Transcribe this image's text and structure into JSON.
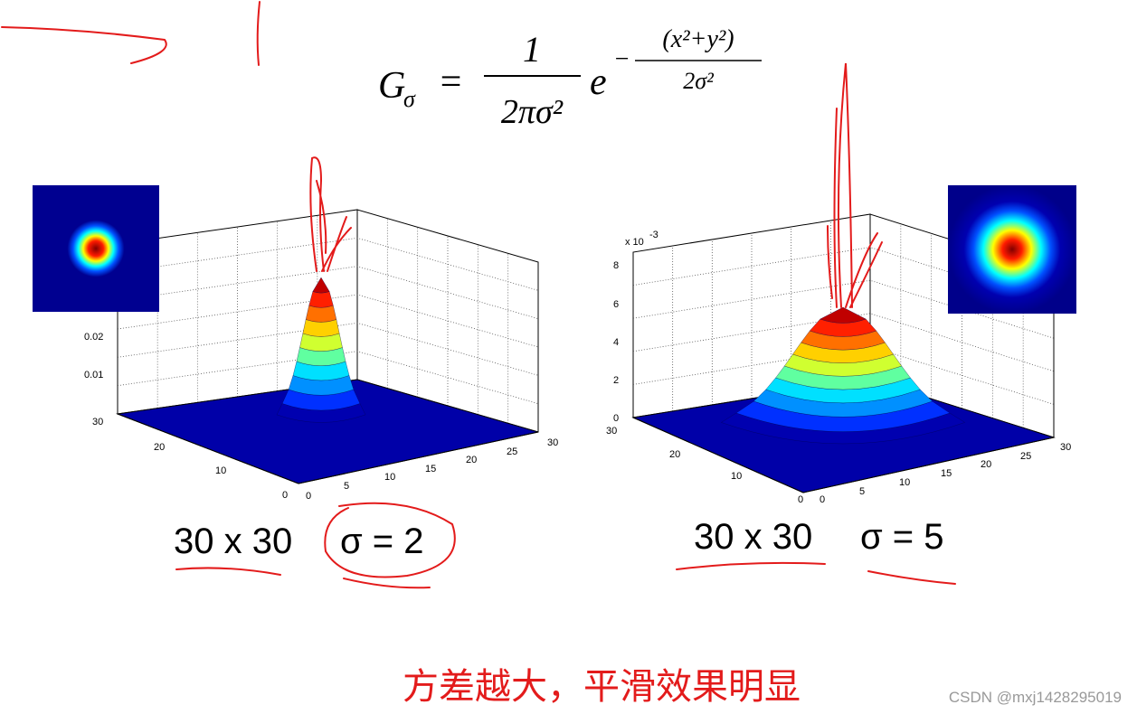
{
  "formula": {
    "lhs": "G",
    "lhs_sub": "σ",
    "equals": "=",
    "numerator": "1",
    "denominator": "2πσ²",
    "base": "e",
    "exp_sign": "−",
    "exp_numerator": "(x²+y²)",
    "exp_denominator": "2σ²"
  },
  "panels": [
    {
      "z_ticks": [
        "0.01",
        "0.02"
      ],
      "y_ticks": [
        "30",
        "20",
        "10",
        "0"
      ],
      "x_ticks": [
        "0",
        "5",
        "10",
        "15",
        "20",
        "25",
        "30"
      ],
      "size": "30 x 30",
      "sigma": "σ = 2"
    },
    {
      "z_ticks": [
        "0",
        "2",
        "4",
        "6",
        "8"
      ],
      "z_scale": "x 10",
      "z_scale_exp": "-3",
      "y_ticks": [
        "30",
        "20",
        "10",
        "0"
      ],
      "x_ticks": [
        "0",
        "5",
        "10",
        "15",
        "20",
        "25",
        "30"
      ],
      "size": "30 x 30",
      "sigma": "σ = 5"
    }
  ],
  "note": "方差越大，平滑效果明显",
  "watermark": "CSDN @mxj1428295019"
}
